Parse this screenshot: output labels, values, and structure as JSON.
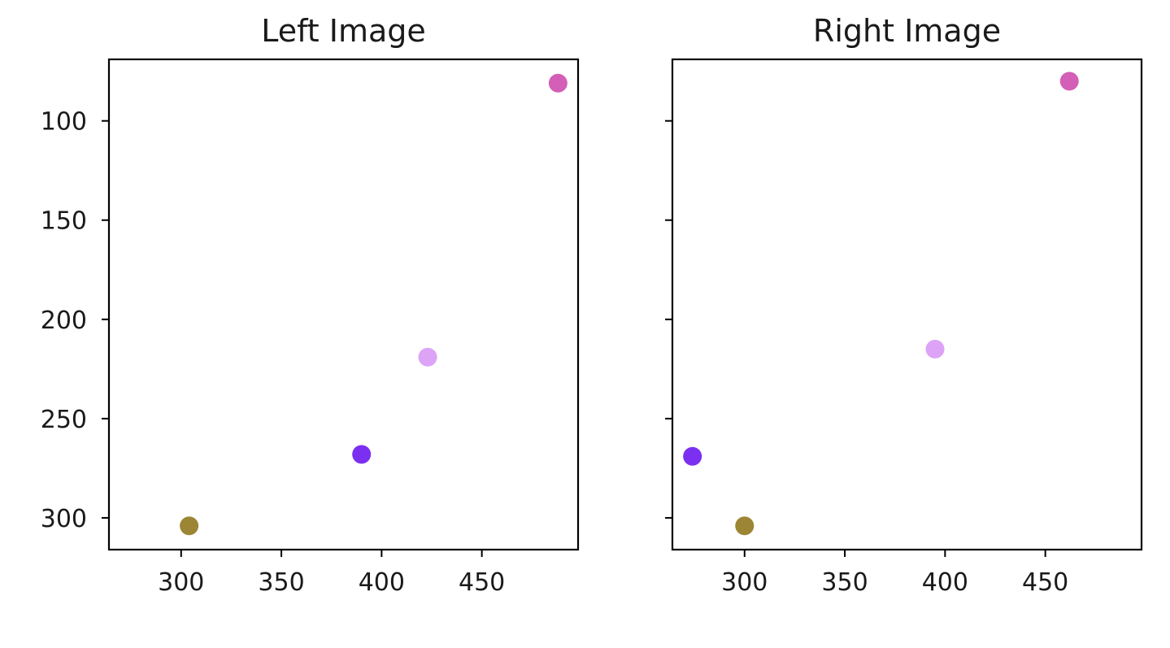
{
  "chart_data": [
    {
      "type": "scatter",
      "title": "Left Image",
      "xlabel": "",
      "ylabel": "",
      "xlim": [
        264,
        498
      ],
      "ylim": [
        316,
        69
      ],
      "y_inverted": true,
      "xticks": [
        300,
        350,
        400,
        450
      ],
      "yticks": [
        100,
        150,
        200,
        250,
        300
      ],
      "ytick_labels_visible": true,
      "grid": false,
      "points": [
        {
          "x": 488,
          "y": 81,
          "color": "#d35fb7"
        },
        {
          "x": 423,
          "y": 219,
          "color": "#dca3f7"
        },
        {
          "x": 390,
          "y": 268,
          "color": "#7b2ff0"
        },
        {
          "x": 304,
          "y": 304,
          "color": "#9c8535"
        }
      ]
    },
    {
      "type": "scatter",
      "title": "Right Image",
      "xlabel": "",
      "ylabel": "",
      "xlim": [
        264,
        498
      ],
      "ylim": [
        316,
        69
      ],
      "y_inverted": true,
      "xticks": [
        300,
        350,
        400,
        450
      ],
      "yticks": [
        100,
        150,
        200,
        250,
        300
      ],
      "ytick_labels_visible": false,
      "grid": false,
      "points": [
        {
          "x": 462,
          "y": 80,
          "color": "#d35fb7"
        },
        {
          "x": 395,
          "y": 215,
          "color": "#dca3f7"
        },
        {
          "x": 274,
          "y": 269,
          "color": "#7b2ff0"
        },
        {
          "x": 300,
          "y": 304,
          "color": "#9c8535"
        }
      ]
    }
  ]
}
